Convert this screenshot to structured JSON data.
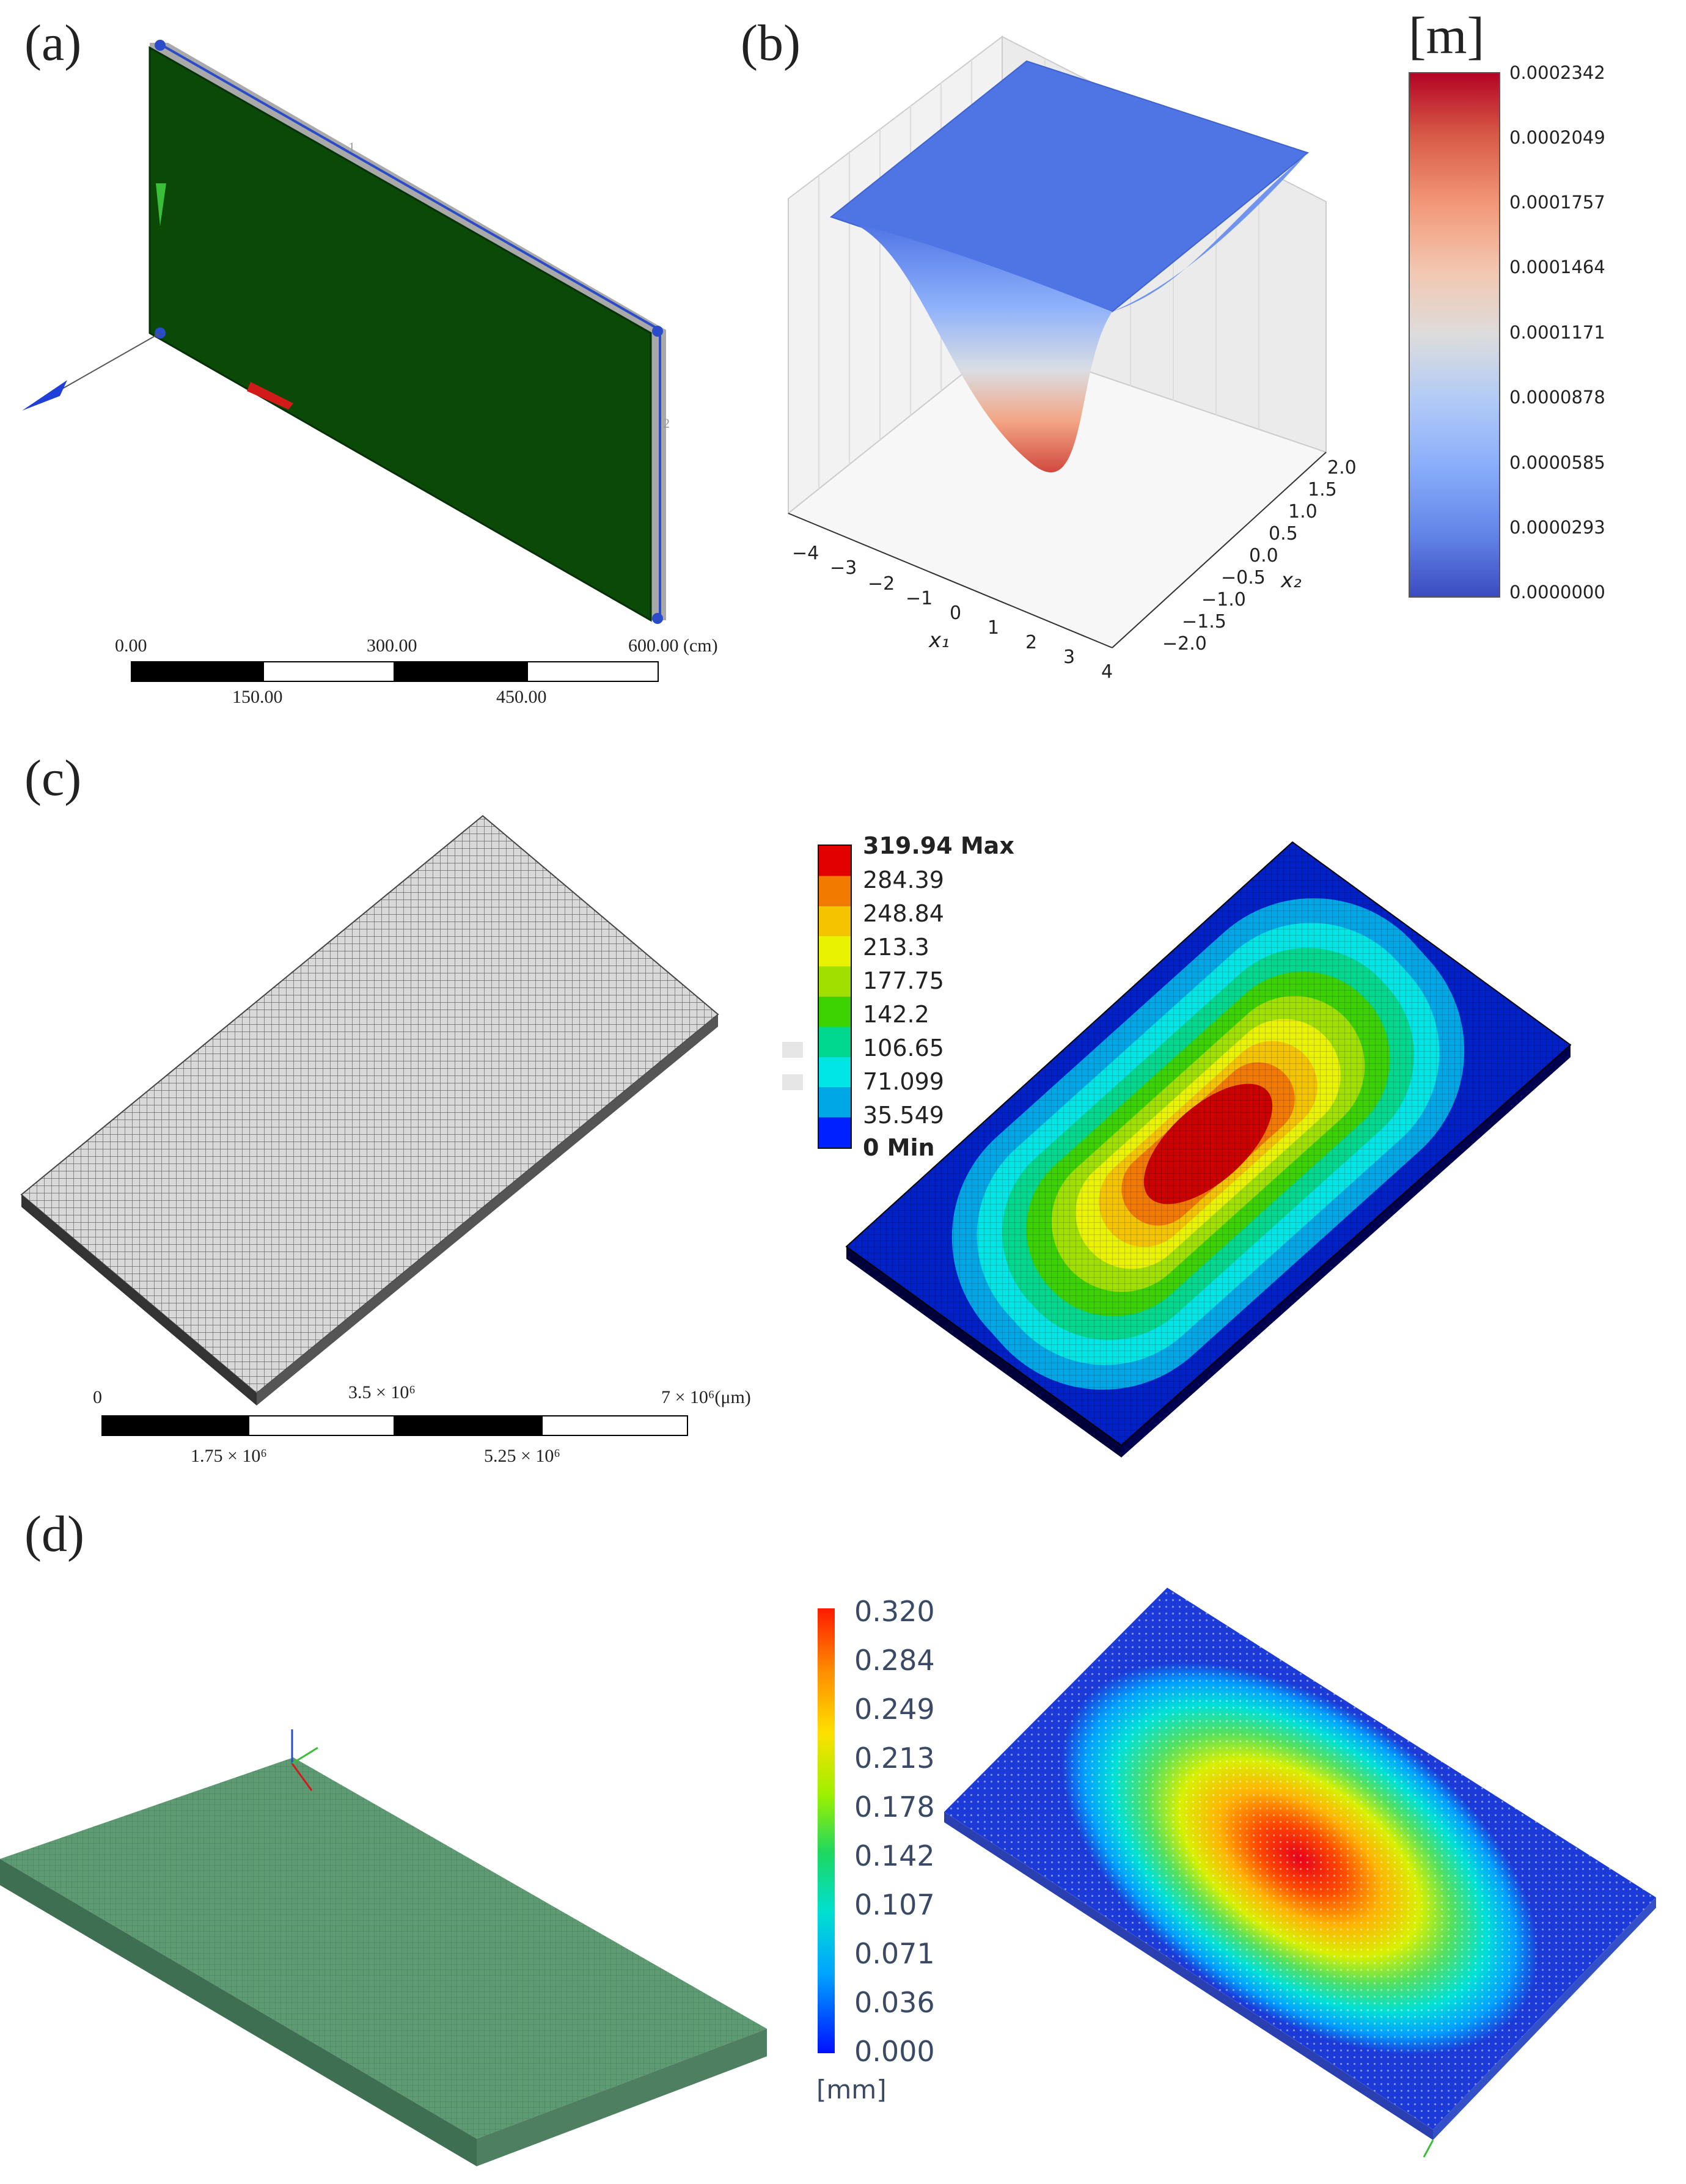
{
  "panels": {
    "a": {
      "label": "(a)",
      "scale_bar": {
        "top_labels": [
          "0.00",
          "300.00",
          "600.00 (cm)"
        ],
        "bottom_labels": [
          "150.00",
          "450.00"
        ]
      },
      "axis_marks": [
        "1",
        "2"
      ]
    },
    "b": {
      "label": "(b)",
      "x1_ticks": [
        "−4",
        "−3",
        "−2",
        "−1",
        "0",
        "1",
        "2",
        "3",
        "4"
      ],
      "x2_ticks": [
        "2.0",
        "1.5",
        "1.0",
        "0.5",
        "0.0",
        "−0.5",
        "−1.0",
        "−1.5",
        "−2.0"
      ],
      "x1_label": "x₁",
      "x2_label": "x₂",
      "colorbar": {
        "unit": "[m]",
        "ticks": [
          "0.0002342",
          "0.0002049",
          "0.0001757",
          "0.0001464",
          "0.0001171",
          "0.0000878",
          "0.0000585",
          "0.0000293",
          "0.0000000"
        ]
      }
    },
    "c": {
      "label": "(c)",
      "scale_bar": {
        "top_labels": [
          "0",
          "3.5 × 10⁶",
          "7 × 10⁶(μm)"
        ],
        "bottom_labels": [
          "1.75 × 10⁶",
          "5.25 × 10⁶"
        ]
      },
      "legend": {
        "max_label": "319.94 Max",
        "mid_labels": [
          "284.39",
          "248.84",
          "213.3",
          "177.75",
          "142.2",
          "106.65",
          "71.099",
          "35.549"
        ],
        "min_label": "0 Min",
        "colors": [
          "#e30000",
          "#f27a00",
          "#f5c400",
          "#e9f200",
          "#9fe000",
          "#3cd100",
          "#00d78f",
          "#00e5e5",
          "#00a7e6",
          "#0020ff"
        ]
      }
    },
    "d": {
      "label": "(d)",
      "colorbar": {
        "ticks": [
          "0.320",
          "0.284",
          "0.249",
          "0.213",
          "0.178",
          "0.142",
          "0.107",
          "0.071",
          "0.036",
          "0.000"
        ],
        "unit": "[mm]"
      }
    }
  }
}
